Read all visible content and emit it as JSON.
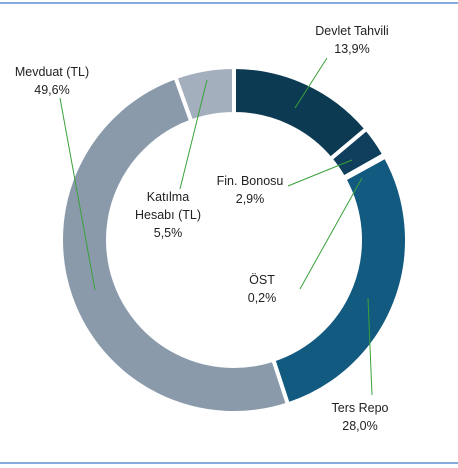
{
  "chart_data": {
    "type": "donut",
    "categories": [
      "Devlet Tahvili",
      "Fin. Bonosu",
      "ÖST",
      "Ters Repo",
      "Mevduat (TL)",
      "Katılma Hesabı (TL)"
    ],
    "values": [
      13.9,
      2.9,
      0.2,
      28.0,
      49.6,
      5.5
    ],
    "value_labels": [
      "13,9%",
      "2,9%",
      "0,2%",
      "28,0%",
      "49,6%",
      "5,5%"
    ],
    "colors": [
      "#0b3a52",
      "#0f3f5c",
      "#124f70",
      "#135a80",
      "#8a9aab",
      "#a3afbc"
    ]
  }
}
